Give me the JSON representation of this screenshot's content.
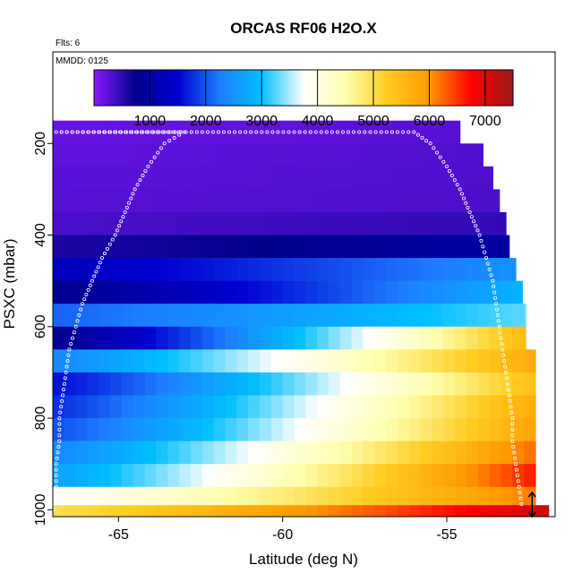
{
  "chart_data": {
    "type": "heatmap",
    "title": "ORCAS RF06 H2O.X",
    "top_left_note": "Flts: 6",
    "panel_note": "MMDD: 0125",
    "xlabel": "Latitude (deg N)",
    "ylabel": "PSXC (mbar)",
    "xlim": [
      -67.0,
      -51.7
    ],
    "ylim": [
      1015,
      0
    ],
    "x_ticks": [
      -65,
      -60,
      -55
    ],
    "x_tick_labels": [
      "-65",
      "-60",
      "-55"
    ],
    "y_ticks": [
      200,
      400,
      600,
      800,
      1000
    ],
    "y_tick_labels": [
      "200",
      "400",
      "600",
      "800",
      "1000"
    ],
    "colorbar": {
      "range": [
        0,
        7500
      ],
      "ticks": [
        1000,
        2000,
        3000,
        4000,
        5000,
        6000,
        7000
      ],
      "tick_labels": [
        "1000",
        "2000",
        "3000",
        "4000",
        "5000",
        "6000",
        "7000"
      ],
      "colors": [
        "#8a1aff",
        "#00008c",
        "#0000d0",
        "#1e7dff",
        "#00bfff",
        "#ffffff",
        "#ffffb0",
        "#ffcc20",
        "#ff9900",
        "#ff0000",
        "#9b1a1a"
      ]
    },
    "lat_min": -67.0,
    "band_height_mbar": 50,
    "bands": [
      {
        "p": 175,
        "lat_max": -54.6,
        "left": 200,
        "right": 280
      },
      {
        "p": 225,
        "lat_max": -53.9,
        "left": 230,
        "right": 320
      },
      {
        "p": 275,
        "lat_max": -53.6,
        "left": 260,
        "right": 330
      },
      {
        "p": 325,
        "lat_max": -53.4,
        "left": 280,
        "right": 340
      },
      {
        "p": 375,
        "lat_max": -53.2,
        "left": 350,
        "right": 480
      },
      {
        "p": 425,
        "lat_max": -53.1,
        "left": 600,
        "right": 1000
      },
      {
        "p": 475,
        "lat_max": -52.9,
        "left": 1300,
        "right": 2500
      },
      {
        "p": 525,
        "lat_max": -52.7,
        "left": 800,
        "right": 2900
      },
      {
        "p": 575,
        "lat_max": -52.6,
        "left": 2100,
        "right": 3300
      },
      {
        "p": 625,
        "lat_max": -52.6,
        "left": 800,
        "right": 5600
      },
      {
        "p": 675,
        "lat_max": -52.3,
        "left": 2400,
        "right": 5800
      },
      {
        "p": 725,
        "lat_max": -52.3,
        "left": 1600,
        "right": 5500
      },
      {
        "p": 775,
        "lat_max": -52.3,
        "left": 1800,
        "right": 5800
      },
      {
        "p": 825,
        "lat_max": -52.3,
        "left": 2000,
        "right": 5900
      },
      {
        "p": 875,
        "lat_max": -52.3,
        "left": 2400,
        "right": 6300
      },
      {
        "p": 925,
        "lat_max": -52.3,
        "left": 2700,
        "right": 6700
      },
      {
        "p": 975,
        "lat_max": -52.3,
        "left": 3800,
        "right": 6200
      },
      {
        "p": 1015,
        "lat_max": -51.9,
        "left": 5000,
        "right": 7200
      }
    ],
    "track_points": [
      [
        -67.0,
        1000
      ],
      [
        -66.9,
        950
      ],
      [
        -66.9,
        900
      ],
      [
        -66.8,
        850
      ],
      [
        -66.8,
        800
      ],
      [
        -66.7,
        750
      ],
      [
        -66.6,
        700
      ],
      [
        -66.5,
        650
      ],
      [
        -66.3,
        600
      ],
      [
        -66.1,
        550
      ],
      [
        -65.8,
        500
      ],
      [
        -65.5,
        450
      ],
      [
        -65.1,
        400
      ],
      [
        -64.8,
        350
      ],
      [
        -64.5,
        300
      ],
      [
        -64.1,
        250
      ],
      [
        -63.6,
        200
      ],
      [
        -63.0,
        175
      ],
      [
        -66.9,
        175
      ],
      [
        -58.0,
        175
      ],
      [
        -56.0,
        175
      ],
      [
        -55.5,
        200
      ],
      [
        -55.0,
        250
      ],
      [
        -54.6,
        300
      ],
      [
        -54.3,
        350
      ],
      [
        -54.0,
        400
      ],
      [
        -53.8,
        450
      ],
      [
        -53.6,
        500
      ],
      [
        -53.5,
        550
      ],
      [
        -53.4,
        600
      ],
      [
        -53.3,
        650
      ],
      [
        -53.2,
        700
      ],
      [
        -53.1,
        750
      ],
      [
        -53.0,
        800
      ],
      [
        -53.0,
        850
      ],
      [
        -52.9,
        900
      ],
      [
        -52.8,
        950
      ],
      [
        -52.7,
        1000
      ]
    ],
    "arrow_lat": -52.4
  }
}
